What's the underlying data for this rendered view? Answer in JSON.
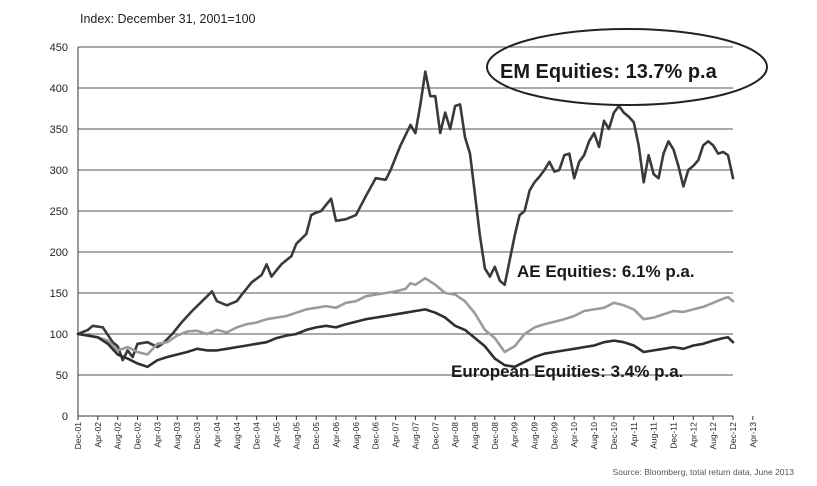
{
  "chart_data": {
    "type": "line",
    "subtitle": "Index: December 31, 2001=100",
    "ylim": [
      0,
      450
    ],
    "yticks": [
      "0",
      "50",
      "100",
      "150",
      "200",
      "250",
      "300",
      "350",
      "400",
      "450"
    ],
    "x_tick_labels": [
      "Dec-01",
      "Apr-02",
      "Aug-02",
      "Dec-02",
      "Apr-03",
      "Aug-03",
      "Dec-03",
      "Apr-04",
      "Aug-04",
      "Dec-04",
      "Apr-05",
      "Aug-05",
      "Dec-05",
      "Apr-06",
      "Aug-06",
      "Dec-06",
      "Apr-07",
      "Aug-07",
      "Dec-07",
      "Apr-08",
      "Aug-08",
      "Dec-08",
      "Apr-09",
      "Aug-09",
      "Dec-09",
      "Apr-10",
      "Aug-10",
      "Dec-10",
      "Apr-11",
      "Aug-11",
      "Dec-11",
      "Apr-12",
      "Aug-12",
      "Dec-12",
      "Apr-13"
    ],
    "x_unit": "months since Dec-01",
    "grid": true,
    "series": [
      {
        "name": "EM Equities",
        "color": "#3a3a3a",
        "points": [
          [
            0,
            100
          ],
          [
            2,
            105
          ],
          [
            3,
            110
          ],
          [
            5,
            108
          ],
          [
            7,
            90
          ],
          [
            8,
            85
          ],
          [
            9,
            68
          ],
          [
            10,
            80
          ],
          [
            11,
            72
          ],
          [
            12,
            88
          ],
          [
            14,
            90
          ],
          [
            16,
            84
          ],
          [
            17,
            88
          ],
          [
            19,
            100
          ],
          [
            21,
            115
          ],
          [
            23,
            128
          ],
          [
            25,
            140
          ],
          [
            27,
            152
          ],
          [
            28,
            140
          ],
          [
            30,
            135
          ],
          [
            32,
            140
          ],
          [
            33,
            148
          ],
          [
            35,
            163
          ],
          [
            37,
            172
          ],
          [
            38,
            185
          ],
          [
            39,
            170
          ],
          [
            41,
            185
          ],
          [
            43,
            195
          ],
          [
            44,
            210
          ],
          [
            46,
            222
          ],
          [
            47,
            245
          ],
          [
            48,
            248
          ],
          [
            49,
            250
          ],
          [
            51,
            265
          ],
          [
            52,
            238
          ],
          [
            54,
            240
          ],
          [
            56,
            245
          ],
          [
            58,
            268
          ],
          [
            60,
            290
          ],
          [
            62,
            288
          ],
          [
            63,
            300
          ],
          [
            65,
            330
          ],
          [
            67,
            355
          ],
          [
            68,
            345
          ],
          [
            69,
            380
          ],
          [
            70,
            420
          ],
          [
            71,
            390
          ],
          [
            72,
            390
          ],
          [
            73,
            345
          ],
          [
            74,
            370
          ],
          [
            75,
            350
          ],
          [
            76,
            378
          ],
          [
            77,
            380
          ],
          [
            78,
            340
          ],
          [
            79,
            320
          ],
          [
            80,
            270
          ],
          [
            81,
            220
          ],
          [
            82,
            180
          ],
          [
            83,
            170
          ],
          [
            84,
            182
          ],
          [
            85,
            165
          ],
          [
            86,
            160
          ],
          [
            87,
            190
          ],
          [
            88,
            220
          ],
          [
            89,
            245
          ],
          [
            90,
            250
          ],
          [
            91,
            275
          ],
          [
            92,
            285
          ],
          [
            93,
            292
          ],
          [
            94,
            300
          ],
          [
            95,
            310
          ],
          [
            96,
            298
          ],
          [
            97,
            300
          ],
          [
            98,
            318
          ],
          [
            99,
            320
          ],
          [
            100,
            290
          ],
          [
            101,
            310
          ],
          [
            102,
            318
          ],
          [
            103,
            335
          ],
          [
            104,
            345
          ],
          [
            105,
            328
          ],
          [
            106,
            360
          ],
          [
            107,
            350
          ],
          [
            108,
            370
          ],
          [
            109,
            378
          ],
          [
            110,
            370
          ],
          [
            111,
            365
          ],
          [
            112,
            358
          ],
          [
            113,
            330
          ],
          [
            114,
            285
          ],
          [
            115,
            318
          ],
          [
            116,
            295
          ],
          [
            117,
            290
          ],
          [
            118,
            320
          ],
          [
            119,
            335
          ],
          [
            120,
            325
          ],
          [
            121,
            305
          ],
          [
            122,
            280
          ],
          [
            123,
            300
          ],
          [
            124,
            305
          ],
          [
            125,
            312
          ],
          [
            126,
            330
          ],
          [
            127,
            335
          ],
          [
            128,
            330
          ],
          [
            129,
            320
          ],
          [
            130,
            322
          ],
          [
            131,
            318
          ],
          [
            132,
            290
          ]
        ]
      },
      {
        "name": "AE Equities",
        "color": "#9b9b9b",
        "points": [
          [
            0,
            100
          ],
          [
            2,
            98
          ],
          [
            4,
            96
          ],
          [
            6,
            92
          ],
          [
            8,
            80
          ],
          [
            10,
            84
          ],
          [
            12,
            78
          ],
          [
            14,
            75
          ],
          [
            16,
            88
          ],
          [
            18,
            90
          ],
          [
            20,
            98
          ],
          [
            22,
            103
          ],
          [
            24,
            104
          ],
          [
            26,
            100
          ],
          [
            28,
            105
          ],
          [
            30,
            102
          ],
          [
            32,
            108
          ],
          [
            34,
            112
          ],
          [
            36,
            114
          ],
          [
            38,
            118
          ],
          [
            40,
            120
          ],
          [
            42,
            122
          ],
          [
            44,
            126
          ],
          [
            46,
            130
          ],
          [
            48,
            132
          ],
          [
            50,
            134
          ],
          [
            52,
            132
          ],
          [
            54,
            138
          ],
          [
            56,
            140
          ],
          [
            58,
            146
          ],
          [
            60,
            148
          ],
          [
            62,
            150
          ],
          [
            64,
            152
          ],
          [
            66,
            155
          ],
          [
            67,
            162
          ],
          [
            68,
            160
          ],
          [
            70,
            168
          ],
          [
            72,
            160
          ],
          [
            74,
            150
          ],
          [
            76,
            148
          ],
          [
            78,
            140
          ],
          [
            80,
            125
          ],
          [
            82,
            105
          ],
          [
            84,
            95
          ],
          [
            86,
            78
          ],
          [
            88,
            85
          ],
          [
            90,
            100
          ],
          [
            92,
            108
          ],
          [
            94,
            112
          ],
          [
            96,
            115
          ],
          [
            98,
            118
          ],
          [
            100,
            122
          ],
          [
            102,
            128
          ],
          [
            104,
            130
          ],
          [
            106,
            132
          ],
          [
            108,
            138
          ],
          [
            110,
            135
          ],
          [
            112,
            130
          ],
          [
            114,
            118
          ],
          [
            116,
            120
          ],
          [
            118,
            124
          ],
          [
            120,
            128
          ],
          [
            122,
            127
          ],
          [
            124,
            130
          ],
          [
            126,
            133
          ],
          [
            128,
            138
          ],
          [
            130,
            143
          ],
          [
            131,
            145
          ],
          [
            132,
            140
          ]
        ]
      },
      {
        "name": "European Equities",
        "color": "#2f2f2f",
        "points": [
          [
            0,
            100
          ],
          [
            2,
            98
          ],
          [
            4,
            96
          ],
          [
            6,
            88
          ],
          [
            8,
            75
          ],
          [
            10,
            70
          ],
          [
            12,
            64
          ],
          [
            14,
            60
          ],
          [
            16,
            68
          ],
          [
            18,
            72
          ],
          [
            20,
            75
          ],
          [
            22,
            78
          ],
          [
            24,
            82
          ],
          [
            26,
            80
          ],
          [
            28,
            80
          ],
          [
            30,
            82
          ],
          [
            32,
            84
          ],
          [
            34,
            86
          ],
          [
            36,
            88
          ],
          [
            38,
            90
          ],
          [
            40,
            95
          ],
          [
            42,
            98
          ],
          [
            44,
            100
          ],
          [
            46,
            105
          ],
          [
            48,
            108
          ],
          [
            50,
            110
          ],
          [
            52,
            108
          ],
          [
            54,
            112
          ],
          [
            56,
            115
          ],
          [
            58,
            118
          ],
          [
            60,
            120
          ],
          [
            62,
            122
          ],
          [
            64,
            124
          ],
          [
            66,
            126
          ],
          [
            68,
            128
          ],
          [
            70,
            130
          ],
          [
            72,
            126
          ],
          [
            74,
            120
          ],
          [
            76,
            110
          ],
          [
            78,
            105
          ],
          [
            80,
            95
          ],
          [
            82,
            85
          ],
          [
            84,
            70
          ],
          [
            86,
            62
          ],
          [
            88,
            60
          ],
          [
            90,
            66
          ],
          [
            92,
            72
          ],
          [
            94,
            76
          ],
          [
            96,
            78
          ],
          [
            98,
            80
          ],
          [
            100,
            82
          ],
          [
            102,
            84
          ],
          [
            104,
            86
          ],
          [
            106,
            90
          ],
          [
            108,
            92
          ],
          [
            110,
            90
          ],
          [
            112,
            86
          ],
          [
            114,
            78
          ],
          [
            116,
            80
          ],
          [
            118,
            82
          ],
          [
            120,
            84
          ],
          [
            122,
            82
          ],
          [
            124,
            86
          ],
          [
            126,
            88
          ],
          [
            128,
            92
          ],
          [
            130,
            95
          ],
          [
            131,
            96
          ],
          [
            132,
            90
          ]
        ]
      }
    ],
    "annotations": [
      {
        "text": "EM Equities: 13.7% p.a",
        "boxed": true
      },
      {
        "text": "AE Equities: 6.1% p.a.",
        "boxed": false
      },
      {
        "text": "European Equities: 3.4% p.a.",
        "boxed": false
      }
    ],
    "source": "Source: Bloomberg, total return data, June 2013"
  }
}
